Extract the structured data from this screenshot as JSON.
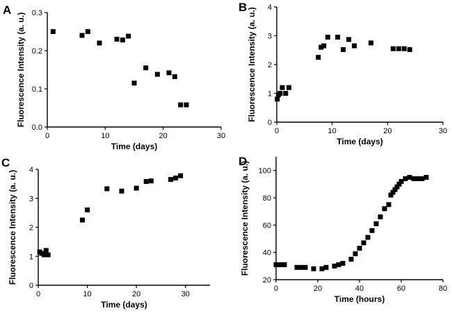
{
  "chart_data": [
    {
      "panel": "A",
      "type": "scatter",
      "xlabel": "Time (days)",
      "ylabel": "Fluorescence Intensity (a. u.)",
      "xlim": [
        0,
        30
      ],
      "ylim": [
        0,
        0.3
      ],
      "xticks": [
        "0",
        "10",
        "20",
        "30"
      ],
      "yticks": [
        "0.0",
        "0.1",
        "0.2",
        "0.3"
      ],
      "x": [
        1,
        6,
        7,
        9,
        12,
        13,
        14,
        15,
        17,
        19,
        21,
        22,
        23,
        24
      ],
      "y": [
        0.25,
        0.24,
        0.25,
        0.22,
        0.23,
        0.228,
        0.238,
        0.115,
        0.155,
        0.138,
        0.142,
        0.132,
        0.058,
        0.058
      ]
    },
    {
      "panel": "B",
      "type": "scatter",
      "xlabel": "Time (days)",
      "ylabel": "Fluorescence Intensity (a. u.)",
      "xlim": [
        0,
        30
      ],
      "ylim": [
        0,
        4
      ],
      "xticks": [
        "0",
        "10",
        "20",
        "30"
      ],
      "yticks": [
        "0",
        "1",
        "2",
        "3",
        "4"
      ],
      "x": [
        0.1,
        0.3,
        0.6,
        1.0,
        1.6,
        2.2,
        7.5,
        8.0,
        8.5,
        9.2,
        11,
        12,
        13,
        14,
        17,
        21,
        22,
        23,
        24
      ],
      "y": [
        0.8,
        0.95,
        1.0,
        1.2,
        1.0,
        1.2,
        2.25,
        2.6,
        2.65,
        2.95,
        2.95,
        2.52,
        2.87,
        2.65,
        2.75,
        2.55,
        2.55,
        2.55,
        2.52
      ]
    },
    {
      "panel": "C",
      "type": "scatter",
      "xlabel": "Time (days)",
      "ylabel": "Fluorescence Intensity (a. u.)",
      "xlim": [
        0,
        35
      ],
      "ylim": [
        0,
        4
      ],
      "xticks": [
        "0",
        "10",
        "20",
        "30"
      ],
      "yticks": [
        "0",
        "1",
        "2",
        "3",
        "4"
      ],
      "x": [
        0.3,
        0.7,
        1.2,
        1.6,
        2.0,
        9,
        10,
        14,
        17,
        20,
        22,
        23,
        27,
        28,
        29
      ],
      "y": [
        1.15,
        1.1,
        1.05,
        1.2,
        1.05,
        2.25,
        2.6,
        3.33,
        3.25,
        3.35,
        3.58,
        3.6,
        3.65,
        3.7,
        3.78
      ]
    },
    {
      "panel": "D",
      "type": "scatter",
      "xlabel": "Time (hours)",
      "ylabel": "Fluorescence Intensity (a. u.)",
      "xlim": [
        0,
        80
      ],
      "ylim": [
        20,
        110
      ],
      "xticks": [
        "0",
        "20",
        "40",
        "60",
        "80"
      ],
      "yticks": [
        "20",
        "40",
        "60",
        "80",
        "100"
      ],
      "x": [
        0,
        2,
        4,
        10,
        12,
        14,
        18,
        22,
        24,
        28,
        30,
        32,
        36,
        38,
        40,
        42,
        44,
        46,
        48,
        50,
        52,
        54,
        55,
        56,
        57,
        58,
        59,
        60,
        62,
        64,
        66,
        68,
        70,
        72
      ],
      "y": [
        31,
        31,
        31,
        29,
        29,
        29,
        28,
        28,
        29,
        30,
        31,
        32,
        35,
        39,
        43,
        47,
        51,
        56,
        61,
        66,
        72,
        75,
        82,
        84,
        86,
        88,
        90,
        92,
        94,
        95,
        94,
        94,
        94,
        95
      ]
    }
  ]
}
